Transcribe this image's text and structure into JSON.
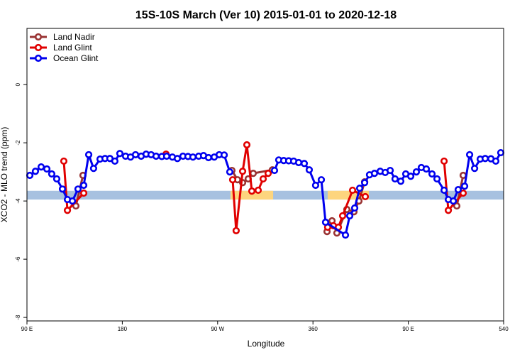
{
  "chart_data": {
    "type": "line",
    "title": "15S-10S March (Ver 10)   2015-01-01 to 2020-12-18",
    "x_label": "Longitude",
    "y_label": "XCO2 - MLO trend (ppm)",
    "xlim": [
      90,
      540
    ],
    "ylim": [
      -8.12,
      1.93
    ],
    "xticks": [
      {
        "value": 90,
        "label": "90 E"
      },
      180,
      {
        "value": 270,
        "label": "90 W"
      },
      360,
      {
        "value": 450,
        "label": "90 E"
      },
      540
    ],
    "yticks": [
      0,
      -2,
      -4,
      -6,
      -8
    ],
    "legend": "top-left",
    "bands": [
      {
        "x": [
          90,
          540
        ],
        "y": [
          -3.95,
          -3.65
        ],
        "color": "#a7c1e0"
      },
      {
        "x": [
          282.2,
          322.4
        ],
        "y": [
          -3.95,
          -3.65
        ],
        "color": "#fdd57e"
      },
      {
        "x": [
          373.9,
          412.8
        ],
        "y": [
          -3.95,
          -3.65
        ],
        "color": "#fdd57e"
      }
    ],
    "series": [
      {
        "name": "Land Nadir",
        "color": "#993333",
        "x": [
          136.2,
          142.9,
          200,
          283.5,
          288.8,
          293.6,
          298.9,
          303.6,
          321.7,
          350,
          373.3,
          378.0,
          382.6,
          392.0,
          398.7,
          403.4,
          408.8,
          450,
          495.8,
          501.8
        ],
        "values": [
          -4.17,
          -3.12,
          null,
          -2.95,
          -3.27,
          -3.37,
          -3.24,
          -3.05,
          -2.93,
          null,
          -5.05,
          -4.68,
          -5.1,
          -4.29,
          -4.37,
          -4.0,
          -3.34,
          null,
          -4.17,
          -3.12
        ]
      },
      {
        "name": "Land Glint",
        "color": "#e00000",
        "x": [
          124.8,
          128.2,
          143.6,
          180,
          221.3,
          260,
          284.2,
          287.5,
          293.6,
          297.6,
          302.3,
          308.3,
          313.0,
          317.7,
          350,
          373.9,
          379.3,
          384.0,
          388.0,
          397.4,
          409.4,
          450,
          483.8,
          487.8,
          501.8
        ],
        "values": [
          -2.63,
          -4.32,
          -3.73,
          null,
          -2.39,
          null,
          -3.27,
          -5.02,
          -2.98,
          -2.07,
          -3.66,
          -3.63,
          -3.24,
          -3.05,
          null,
          -4.9,
          -4.85,
          -4.9,
          -4.51,
          -3.63,
          -3.85,
          null,
          -2.63,
          -4.32,
          -3.73
        ]
      },
      {
        "name": "Ocean Glint",
        "color": "#0000ee",
        "x": [
          92.7,
          98.0,
          103.4,
          108.8,
          113.4,
          118.1,
          123.5,
          128.2,
          132.9,
          138.2,
          143.6,
          148.3,
          152.9,
          159.0,
          163.7,
          168.3,
          173.0,
          177.7,
          183.1,
          187.8,
          192.5,
          197.8,
          202.5,
          207.2,
          211.9,
          217.3,
          221.9,
          227.3,
          232.0,
          237.3,
          242.0,
          246.7,
          252.1,
          256.7,
          261.4,
          266.8,
          271.5,
          276.2,
          281.5,
          300,
          323.7,
          327.7,
          332.4,
          337.1,
          341.8,
          346.5,
          351.8,
          356.5,
          362.5,
          367.9,
          371.9,
          390.7,
          394.7,
          399.4,
          404.1,
          408.8,
          413.4,
          418.1,
          423.5,
          428.2,
          432.9,
          437.5,
          442.9,
          447.6,
          452.3,
          457.6,
          462.3,
          467.0,
          472.4,
          477.1,
          483.8,
          487.8,
          492.5,
          497.1,
          503.2,
          507.9,
          512.6,
          517.9,
          522.6,
          528.0,
          532.6,
          537.3
        ],
        "values": [
          -3.12,
          -2.98,
          -2.83,
          -2.9,
          -3.07,
          -3.24,
          -3.59,
          -3.95,
          -4.0,
          -3.59,
          -3.46,
          -2.41,
          -2.88,
          -2.56,
          -2.54,
          -2.54,
          -2.63,
          -2.37,
          -2.46,
          -2.49,
          -2.41,
          -2.46,
          -2.39,
          -2.41,
          -2.46,
          -2.47,
          -2.46,
          -2.49,
          -2.54,
          -2.46,
          -2.47,
          -2.49,
          -2.46,
          -2.44,
          -2.51,
          -2.49,
          -2.41,
          -2.42,
          -3.0,
          null,
          -2.95,
          -2.59,
          -2.61,
          -2.62,
          -2.63,
          -2.68,
          -2.71,
          -2.93,
          -3.46,
          -3.27,
          -4.73,
          -5.17,
          -4.51,
          -4.24,
          -3.56,
          -3.37,
          -3.1,
          -3.05,
          -2.98,
          -3.02,
          -2.95,
          -3.24,
          -3.32,
          -3.07,
          -3.15,
          -3.0,
          -2.85,
          -2.9,
          -3.07,
          -3.24,
          -3.63,
          -3.95,
          -4.0,
          -3.61,
          -3.49,
          -2.41,
          -2.88,
          -2.56,
          -2.54,
          -2.55,
          -2.63,
          -2.34
        ]
      }
    ]
  }
}
